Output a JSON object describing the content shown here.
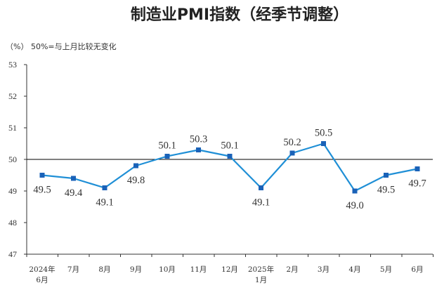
{
  "chart_data": {
    "type": "line",
    "title": "制造业PMI指数（经季节调整）",
    "unit_note": "（%）  50%=与上月比较无变化",
    "ylim": [
      47,
      53
    ],
    "yticks": [
      47,
      48,
      49,
      50,
      51,
      52,
      53
    ],
    "reference_line": 50,
    "grid": false,
    "categories": [
      [
        "2024年",
        "6月"
      ],
      [
        "7月"
      ],
      [
        "8月"
      ],
      [
        "9月"
      ],
      [
        "10月"
      ],
      [
        "11月"
      ],
      [
        "12月"
      ],
      [
        "2025年",
        "1月"
      ],
      [
        "2月"
      ],
      [
        "3月"
      ],
      [
        "4月"
      ],
      [
        "5月"
      ],
      [
        "6月"
      ]
    ],
    "values": [
      49.5,
      49.4,
      49.1,
      49.8,
      50.1,
      50.3,
      50.1,
      49.1,
      50.2,
      50.5,
      49.0,
      49.5,
      49.7
    ],
    "data_labels": [
      "49.5",
      "49.4",
      "49.1",
      "49.8",
      "50.1",
      "50.3",
      "50.1",
      "49.1",
      "50.2",
      "50.5",
      "49.0",
      "49.5",
      "49.7"
    ],
    "colors": {
      "line": "#1f8fd6",
      "marker": "#1a62b8",
      "axis": "#333333"
    }
  }
}
